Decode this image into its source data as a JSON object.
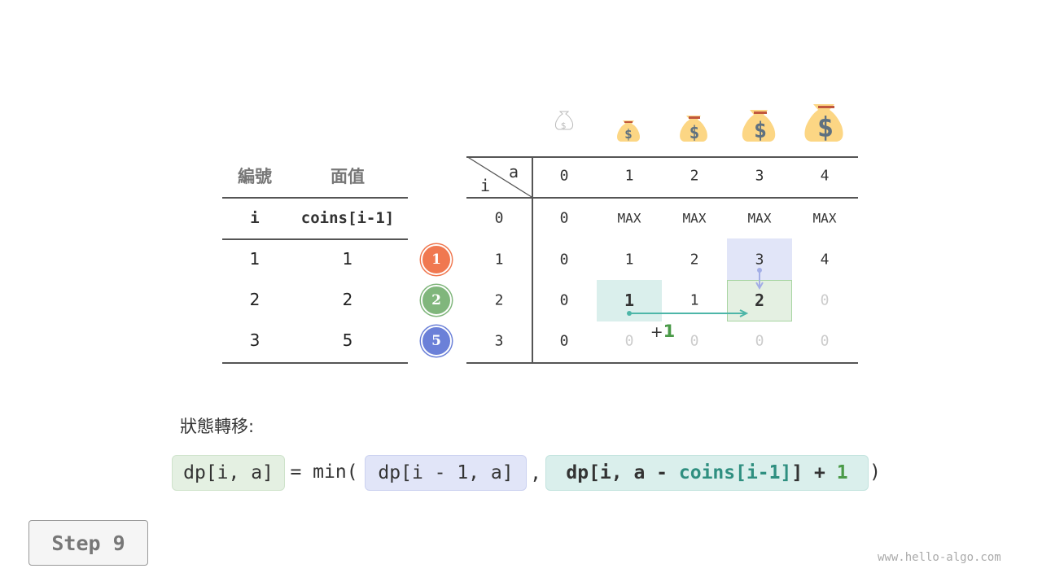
{
  "coin_table": {
    "headers": [
      "編號",
      "面值"
    ],
    "subheaders": [
      "i",
      "coins[i-1]"
    ],
    "rows": [
      [
        "1",
        "1"
      ],
      [
        "2",
        "2"
      ],
      [
        "3",
        "5"
      ]
    ]
  },
  "coin_badges": [
    {
      "label": "1",
      "color": "#f07850"
    },
    {
      "label": "2",
      "color": "#80b67c"
    },
    {
      "label": "5",
      "color": "#6b80d8"
    }
  ],
  "dp_table": {
    "corner_col": "a",
    "corner_row": "i",
    "columns": [
      "0",
      "1",
      "2",
      "3",
      "4"
    ],
    "rows": [
      {
        "i": "0",
        "cells": [
          "0",
          "MAX",
          "MAX",
          "MAX",
          "MAX"
        ]
      },
      {
        "i": "1",
        "cells": [
          "0",
          "1",
          "2",
          "3",
          "4"
        ]
      },
      {
        "i": "2",
        "cells": [
          "0",
          "1",
          "1",
          "2",
          "0"
        ]
      },
      {
        "i": "3",
        "cells": [
          "0",
          "0",
          "0",
          "0",
          "0"
        ]
      }
    ]
  },
  "plus_one": {
    "sign": "+",
    "value": "1"
  },
  "transition_label": "狀態轉移:",
  "formula": {
    "lhs": "dp[i, a]",
    "eq": "= min(",
    "opt1": "dp[i - 1, a]",
    "comma": ",",
    "opt2_a": "dp[i, a - ",
    "opt2_b": "coins[i-1]",
    "opt2_c": "] + ",
    "opt2_d": "1",
    "close": ")"
  },
  "step_label": "Step 9",
  "footer": "www.hello-algo.com",
  "colors": {
    "blue_fill": "#e1e5f8",
    "green_fill": "#e4f0e2",
    "teal_fill": "#daefec",
    "teal_arrow": "#4db6a8",
    "blue_arrow": "#a3aee6",
    "green_text": "#4a9a48",
    "teal_text": "#2f8f80"
  }
}
